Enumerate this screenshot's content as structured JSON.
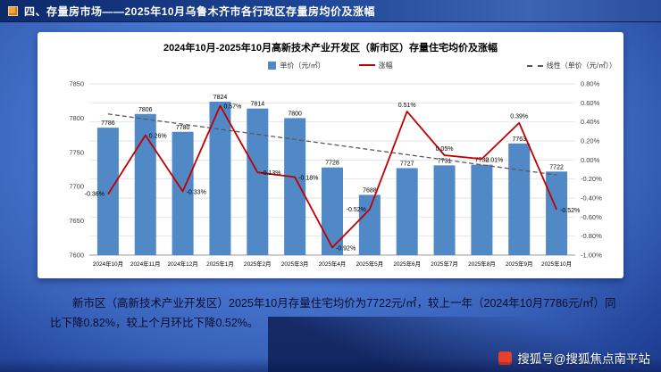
{
  "header": {
    "title": "四、存量房市场——2025年10月乌鲁木齐市各行政区存量房均价及涨幅"
  },
  "chart_data": {
    "type": "bar",
    "title": "2024年10月-2025年10月高新技术产业开发区（新市区）存量住宅均价及涨幅",
    "categories": [
      "2024年10月",
      "2024年11月",
      "2024年12月",
      "2025年1月",
      "2025年2月",
      "2025年3月",
      "2025年4月",
      "2025年5月",
      "2025年6月",
      "2025年7月",
      "2025年8月",
      "2025年9月",
      "2025年10月"
    ],
    "series": [
      {
        "name": "单价（元/㎡）",
        "type": "bar",
        "color": "#5089C6",
        "values": [
          7786,
          7806,
          7780,
          7824,
          7814,
          7800,
          7728,
          7688,
          7727,
          7731,
          7732,
          7763,
          7722
        ]
      },
      {
        "name": "涨幅",
        "type": "line",
        "color": "#C00000",
        "values": [
          -0.36,
          0.26,
          -0.33,
          0.57,
          -0.13,
          -0.18,
          -0.92,
          -0.52,
          0.51,
          0.05,
          0.01,
          0.39,
          -0.52
        ],
        "point_labels": [
          "-0.36%",
          "0.26%",
          "-0.33%",
          "0.57%",
          "-0.13%",
          "-0.18%",
          "-0.92%",
          "-0.52%",
          "0.51%",
          "0.05%",
          "0.01%",
          "0.39%",
          "-0.52%"
        ]
      },
      {
        "name": "线性（单价（元/㎡））",
        "type": "trendline",
        "color": "#595959",
        "dashed": true,
        "start": 7806,
        "end": 7717
      }
    ],
    "left_axis": {
      "min": 7600,
      "max": 7850,
      "ticks": [
        "7850",
        "7800",
        "7750",
        "7700",
        "7650",
        "7600"
      ]
    },
    "right_axis": {
      "min": -1.0,
      "max": 0.8,
      "ticks": [
        "0.80%",
        "0.60%",
        "0.40%",
        "0.20%",
        "0.00%",
        "-0.20%",
        "-0.40%",
        "-0.60%",
        "-0.80%",
        "-1.00%"
      ]
    },
    "legend_position": "top",
    "grid": true,
    "pct_label_sides": [
      "left",
      "right",
      "right",
      "right",
      "right",
      "right",
      "right",
      "left",
      "above",
      "above",
      "right",
      "above",
      "right"
    ]
  },
  "summary": {
    "text": "新市区（高新技术产业开发区）2025年10月存量住宅均价为7722元/㎡，较上一年（2024年10月7786元/㎡）同比下降0.82%，较上个月环比下降0.52%。"
  },
  "watermark": {
    "text": "搜狐号@搜狐焦点南平站"
  }
}
